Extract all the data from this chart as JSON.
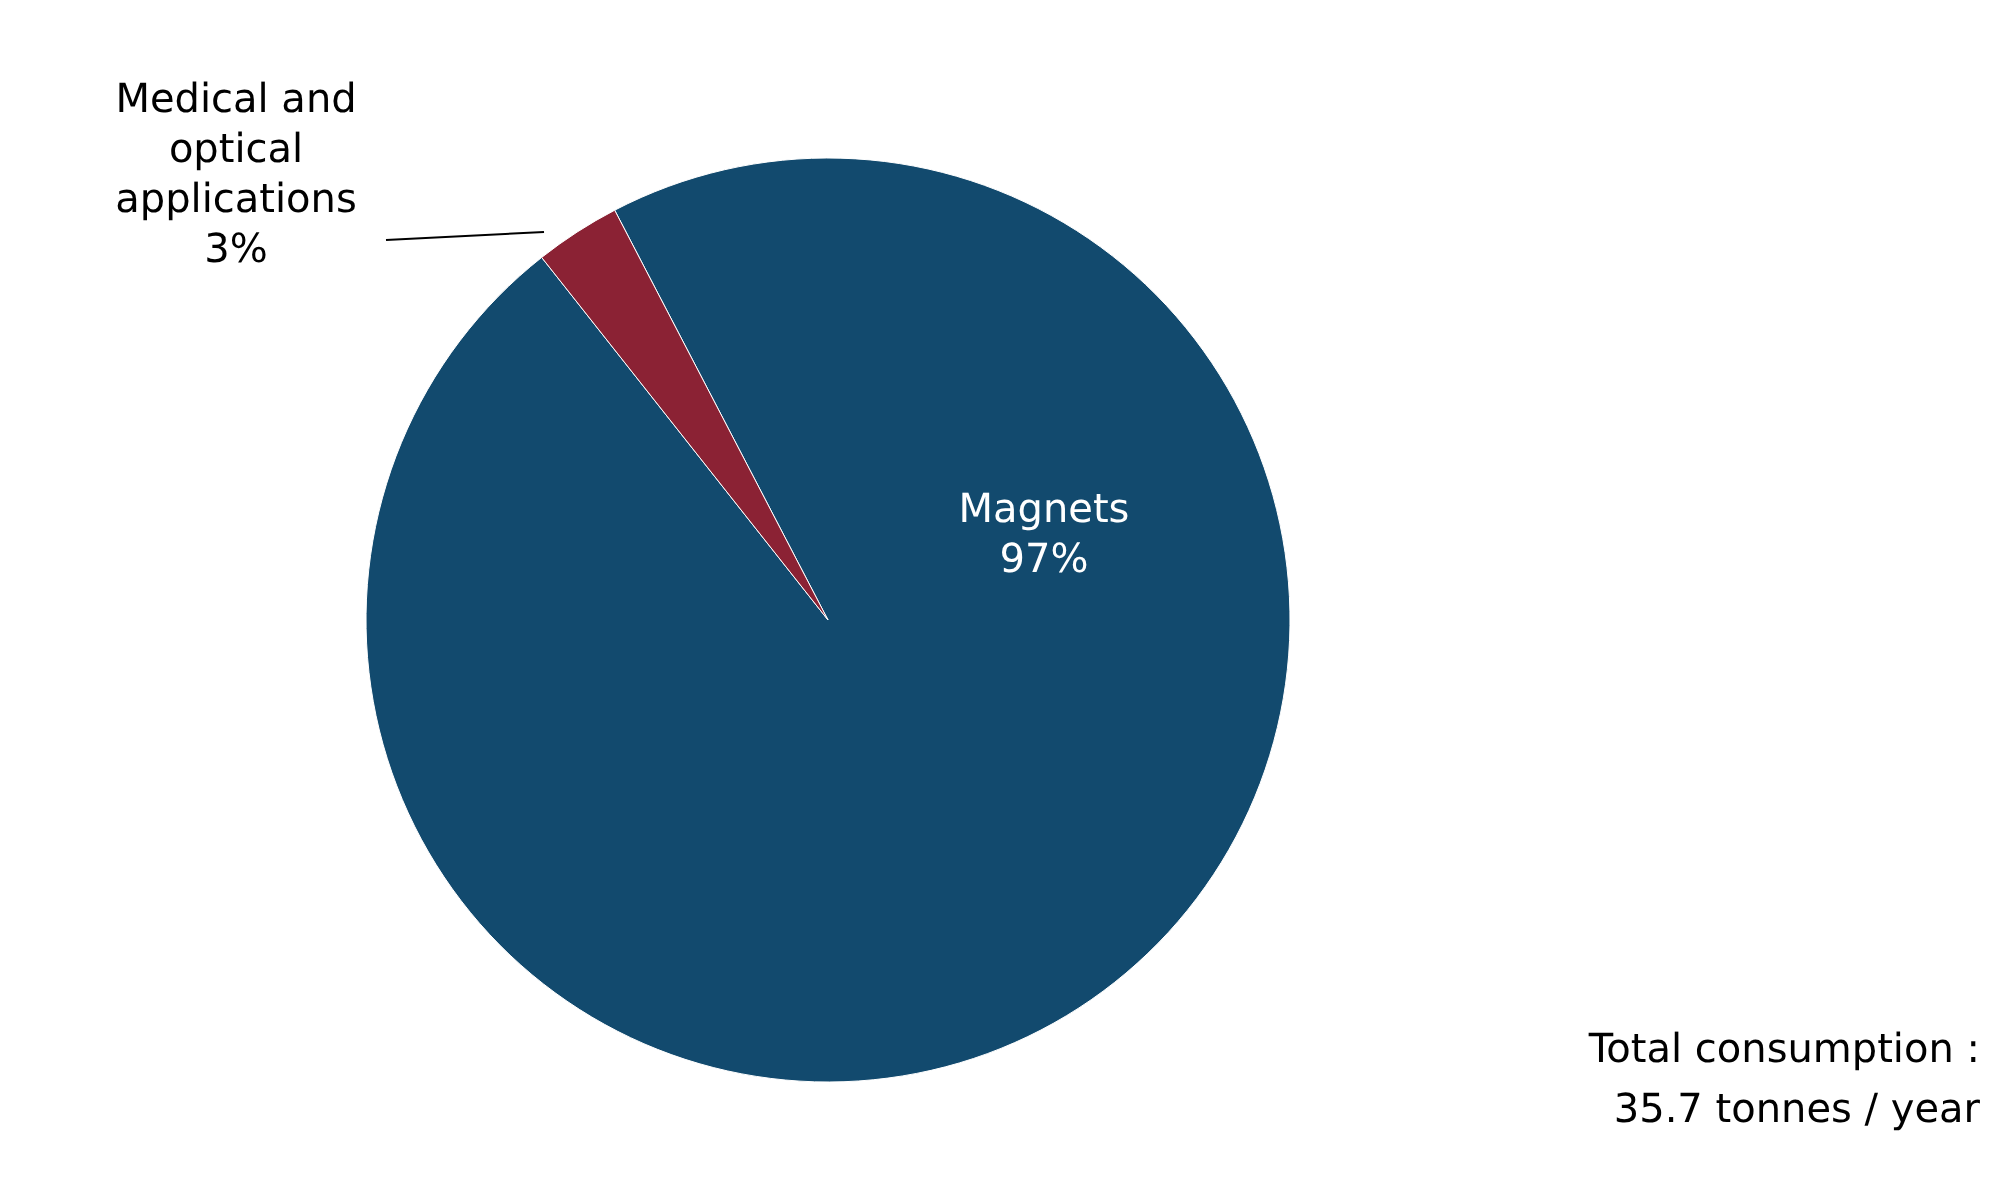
{
  "chart_data": {
    "type": "pie",
    "categories": [
      "Magnets",
      "Medical and optical applications"
    ],
    "values": [
      97,
      3
    ],
    "colors": [
      "#124a6e",
      "#8b2234"
    ],
    "value_labels": [
      "97%",
      "3%"
    ],
    "annotations": [
      "Total consumption :\n35.7 tonnes / year"
    ]
  }
}
